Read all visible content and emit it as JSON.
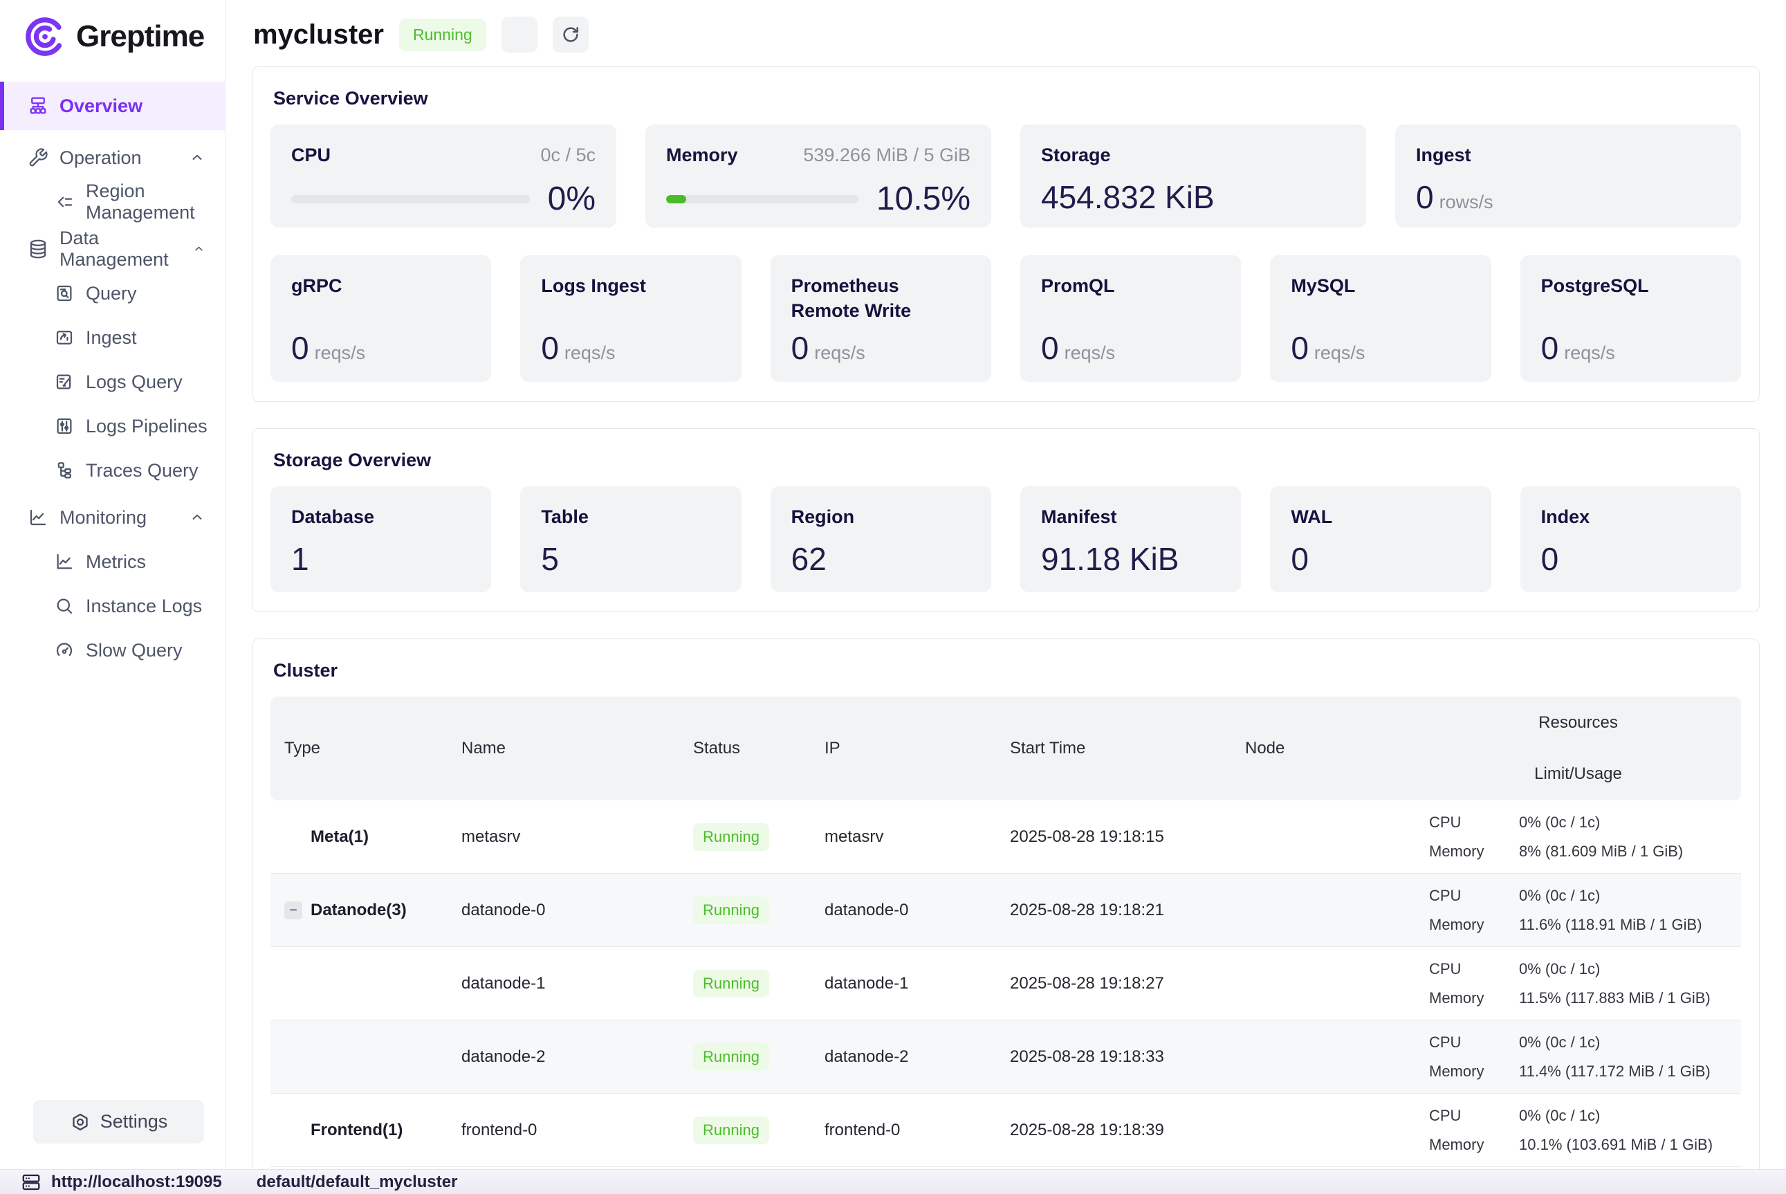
{
  "brand": {
    "name": "Greptime"
  },
  "colors": {
    "accent_purple": "#7b2ff2",
    "status_green": "#4cbc2c",
    "status_green_bg": "#edfae7",
    "card_bg": "#f2f3f5"
  },
  "sidebar": {
    "items": [
      {
        "label": "Overview",
        "icon": "cluster-icon",
        "active": true
      },
      {
        "label": "Operation",
        "icon": "wrench-icon",
        "group": true
      },
      {
        "label": "Region Management",
        "icon": "region-merge-icon"
      },
      {
        "label": "Data Management",
        "icon": "database-icon",
        "group": true
      },
      {
        "label": "Query",
        "icon": "document-search-icon"
      },
      {
        "label": "Ingest",
        "icon": "folder-arrow-icon"
      },
      {
        "label": "Logs Query",
        "icon": "document-edit-icon"
      },
      {
        "label": "Logs Pipelines",
        "icon": "sliders-icon"
      },
      {
        "label": "Traces Query",
        "icon": "tree-icon"
      },
      {
        "label": "Monitoring",
        "icon": "chart-icon",
        "group": true
      },
      {
        "label": "Metrics",
        "icon": "line-chart-icon"
      },
      {
        "label": "Instance Logs",
        "icon": "search-icon"
      },
      {
        "label": "Slow Query",
        "icon": "gauge-icon"
      }
    ],
    "settings_label": "Settings"
  },
  "header": {
    "cluster_name": "mycluster",
    "status": "Running"
  },
  "service_overview": {
    "title": "Service Overview",
    "cpu": {
      "label": "CPU",
      "detail": "0c / 5c",
      "percent": "0%",
      "percent_value": 0
    },
    "memory": {
      "label": "Memory",
      "detail": "539.266 MiB / 5 GiB",
      "percent": "10.5%",
      "percent_value": 10.5
    },
    "storage": {
      "label": "Storage",
      "value": "454.832 KiB"
    },
    "ingest": {
      "label": "Ingest",
      "value": "0",
      "unit": "rows/s"
    },
    "rates": [
      {
        "label": "gRPC",
        "value": "0",
        "unit": "reqs/s"
      },
      {
        "label": "Logs Ingest",
        "value": "0",
        "unit": "reqs/s"
      },
      {
        "label": "Prometheus Remote Write",
        "value": "0",
        "unit": "reqs/s"
      },
      {
        "label": "PromQL",
        "value": "0",
        "unit": "reqs/s"
      },
      {
        "label": "MySQL",
        "value": "0",
        "unit": "reqs/s"
      },
      {
        "label": "PostgreSQL",
        "value": "0",
        "unit": "reqs/s"
      }
    ]
  },
  "storage_overview": {
    "title": "Storage Overview",
    "cards": [
      {
        "label": "Database",
        "value": "1"
      },
      {
        "label": "Table",
        "value": "5"
      },
      {
        "label": "Region",
        "value": "62"
      },
      {
        "label": "Manifest",
        "value": "91.18 KiB"
      },
      {
        "label": "WAL",
        "value": "0"
      },
      {
        "label": "Index",
        "value": "0"
      }
    ]
  },
  "cluster": {
    "title": "Cluster",
    "columns": {
      "type": "Type",
      "name": "Name",
      "status": "Status",
      "ip": "IP",
      "start_time": "Start Time",
      "node": "Node",
      "resources": "Resources",
      "limit_usage": "Limit/Usage"
    },
    "rows": [
      {
        "type": "Meta(1)",
        "name": "metasrv",
        "status": "Running",
        "ip": "metasrv",
        "start_time": "2025-08-28 19:18:15",
        "node": "",
        "cpu_label": "CPU",
        "cpu": "0% (0c / 1c)",
        "memory_label": "Memory",
        "memory": "8% (81.609 MiB / 1 GiB)"
      },
      {
        "type": "Datanode(3)",
        "collapsible": true,
        "name": "datanode-0",
        "status": "Running",
        "ip": "datanode-0",
        "start_time": "2025-08-28 19:18:21",
        "node": "",
        "cpu_label": "CPU",
        "cpu": "0% (0c / 1c)",
        "memory_label": "Memory",
        "memory": "11.6% (118.91 MiB / 1 GiB)"
      },
      {
        "type": "",
        "name": "datanode-1",
        "status": "Running",
        "ip": "datanode-1",
        "start_time": "2025-08-28 19:18:27",
        "node": "",
        "cpu_label": "CPU",
        "cpu": "0% (0c / 1c)",
        "memory_label": "Memory",
        "memory": "11.5% (117.883 MiB / 1 GiB)"
      },
      {
        "type": "",
        "name": "datanode-2",
        "status": "Running",
        "ip": "datanode-2",
        "start_time": "2025-08-28 19:18:33",
        "node": "",
        "cpu_label": "CPU",
        "cpu": "0% (0c / 1c)",
        "memory_label": "Memory",
        "memory": "11.4% (117.172 MiB / 1 GiB)"
      },
      {
        "type": "Frontend(1)",
        "name": "frontend-0",
        "status": "Running",
        "ip": "frontend-0",
        "start_time": "2025-08-28 19:18:39",
        "node": "",
        "cpu_label": "CPU",
        "cpu": "0% (0c / 1c)",
        "memory_label": "Memory",
        "memory": "10.1% (103.691 MiB / 1 GiB)"
      }
    ]
  },
  "status_bar": {
    "url": "http://localhost:19095",
    "path": "default/default_mycluster"
  }
}
